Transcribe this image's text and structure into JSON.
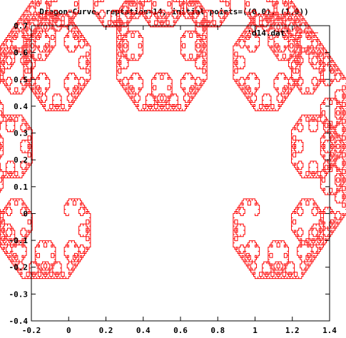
{
  "chart_data": {
    "type": "line",
    "title": "Dragon-Curve, reptation=14, initial points=((0,0), (1,0))",
    "xlabel": "",
    "ylabel": "",
    "xlim": [
      -0.2,
      1.4
    ],
    "ylim": [
      -0.4,
      0.7
    ],
    "x_ticks": [
      -0.2,
      0,
      0.2,
      0.4,
      0.6,
      0.8,
      1,
      1.2,
      1.4
    ],
    "x_tick_labels": [
      "-0.2",
      "0",
      "0.2",
      "0.4",
      "0.6",
      "0.8",
      "1",
      "1.2",
      "1.4"
    ],
    "y_ticks": [
      -0.4,
      -0.3,
      -0.2,
      -0.1,
      0,
      0.1,
      0.2,
      0.3,
      0.4,
      0.5,
      0.6,
      0.7
    ],
    "y_tick_labels": [
      "-0.4",
      "-0.3",
      "-0.2",
      "-0.1",
      "0",
      "0.1",
      "0.2",
      "0.3",
      "0.4",
      "0.5",
      "0.6",
      "0.7"
    ],
    "grid": false,
    "legend_position": "top-right",
    "series": [
      {
        "name": "'d14.dat'",
        "color": "#ff0000",
        "iterations": 14,
        "initial_points": [
          [
            0,
            0
          ],
          [
            1,
            0
          ]
        ]
      }
    ]
  }
}
